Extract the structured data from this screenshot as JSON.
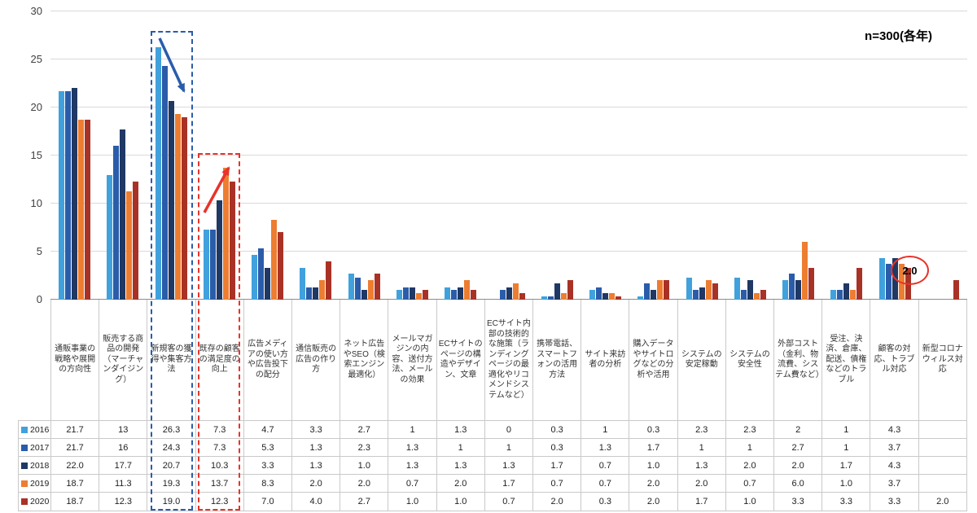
{
  "figure": {
    "n_label": "n=300(各年)"
  },
  "chart_data": {
    "type": "bar",
    "title": "",
    "xlabel": "",
    "ylabel": "",
    "ylim": [
      0,
      30
    ],
    "y_ticks": [
      0,
      5,
      10,
      15,
      20,
      25,
      30
    ],
    "grid": true,
    "legend_position": "data-table-left",
    "categories": [
      "通販事業の戦略や展開の方向性",
      "販売する商品の開発（マーチャンダイジング）",
      "新規客の獲得や集客方法",
      "既存の顧客の満足度の向上",
      "広告メディアの使い方や広告投下の配分",
      "通信販売の広告の作り方",
      "ネット広告やSEO（検索エンジン最適化）",
      "メールマガジンの内容、送付方法、メールの効果",
      "ECサイトのページの構造やデザイン、文章",
      "ECサイト内部の技術的な施策（ランディングページの最適化やリコメンドシステムなど）",
      "携帯電話、スマートフォンの活用方法",
      "サイト来訪者の分析",
      "購入データやサイトログなどの分析や活用",
      "システムの安定稼動",
      "システムの安全性",
      "外部コスト（金利、物流費、システム費など）",
      "受注、決済、倉庫、配送、債権などのトラブル",
      "顧客の対応、トラブル対応",
      "新型コロナウィルス対応"
    ],
    "series": [
      {
        "name": "2016",
        "color": "#41A1DC",
        "values": [
          "21.7",
          "13",
          "26.3",
          "7.3",
          "4.7",
          "3.3",
          "2.7",
          "1",
          "1.3",
          "0",
          "0.3",
          "1",
          "0.3",
          "2.3",
          "2.3",
          "2",
          "1",
          "4.3",
          ""
        ]
      },
      {
        "name": "2017",
        "color": "#2A5CAA",
        "values": [
          "21.7",
          "16",
          "24.3",
          "7.3",
          "5.3",
          "1.3",
          "2.3",
          "1.3",
          "1",
          "1",
          "0.3",
          "1.3",
          "1.7",
          "1",
          "1",
          "2.7",
          "1",
          "3.7",
          ""
        ]
      },
      {
        "name": "2018",
        "color": "#1F3864",
        "values": [
          "22.0",
          "17.7",
          "20.7",
          "10.3",
          "3.3",
          "1.3",
          "1.0",
          "1.3",
          "1.3",
          "1.3",
          "1.7",
          "0.7",
          "1.0",
          "1.3",
          "2.0",
          "2.0",
          "1.7",
          "4.3",
          ""
        ]
      },
      {
        "name": "2019",
        "color": "#ED7D31",
        "values": [
          "18.7",
          "11.3",
          "19.3",
          "13.7",
          "8.3",
          "2.0",
          "2.0",
          "0.7",
          "2.0",
          "1.7",
          "0.7",
          "0.7",
          "2.0",
          "2.0",
          "0.7",
          "6.0",
          "1.0",
          "3.7",
          ""
        ]
      },
      {
        "name": "2020",
        "color": "#A93226",
        "values": [
          "18.7",
          "12.3",
          "19.0",
          "12.3",
          "7.0",
          "4.0",
          "2.7",
          "1.0",
          "1.0",
          "0.7",
          "2.0",
          "0.3",
          "2.0",
          "1.7",
          "1.0",
          "3.3",
          "3.3",
          "3.3",
          "2.0"
        ]
      }
    ]
  },
  "annotations": {
    "blue_color": "#2A5CAA",
    "red_color": "#E8332A",
    "blue_box_meaning": "decline-highlight-new-customer-acquisition",
    "red_box_meaning": "rise-highlight-existing-customer-satisfaction",
    "blue_arrow": "down-trend",
    "red_arrow": "up-trend",
    "covid_label": "2.0"
  }
}
